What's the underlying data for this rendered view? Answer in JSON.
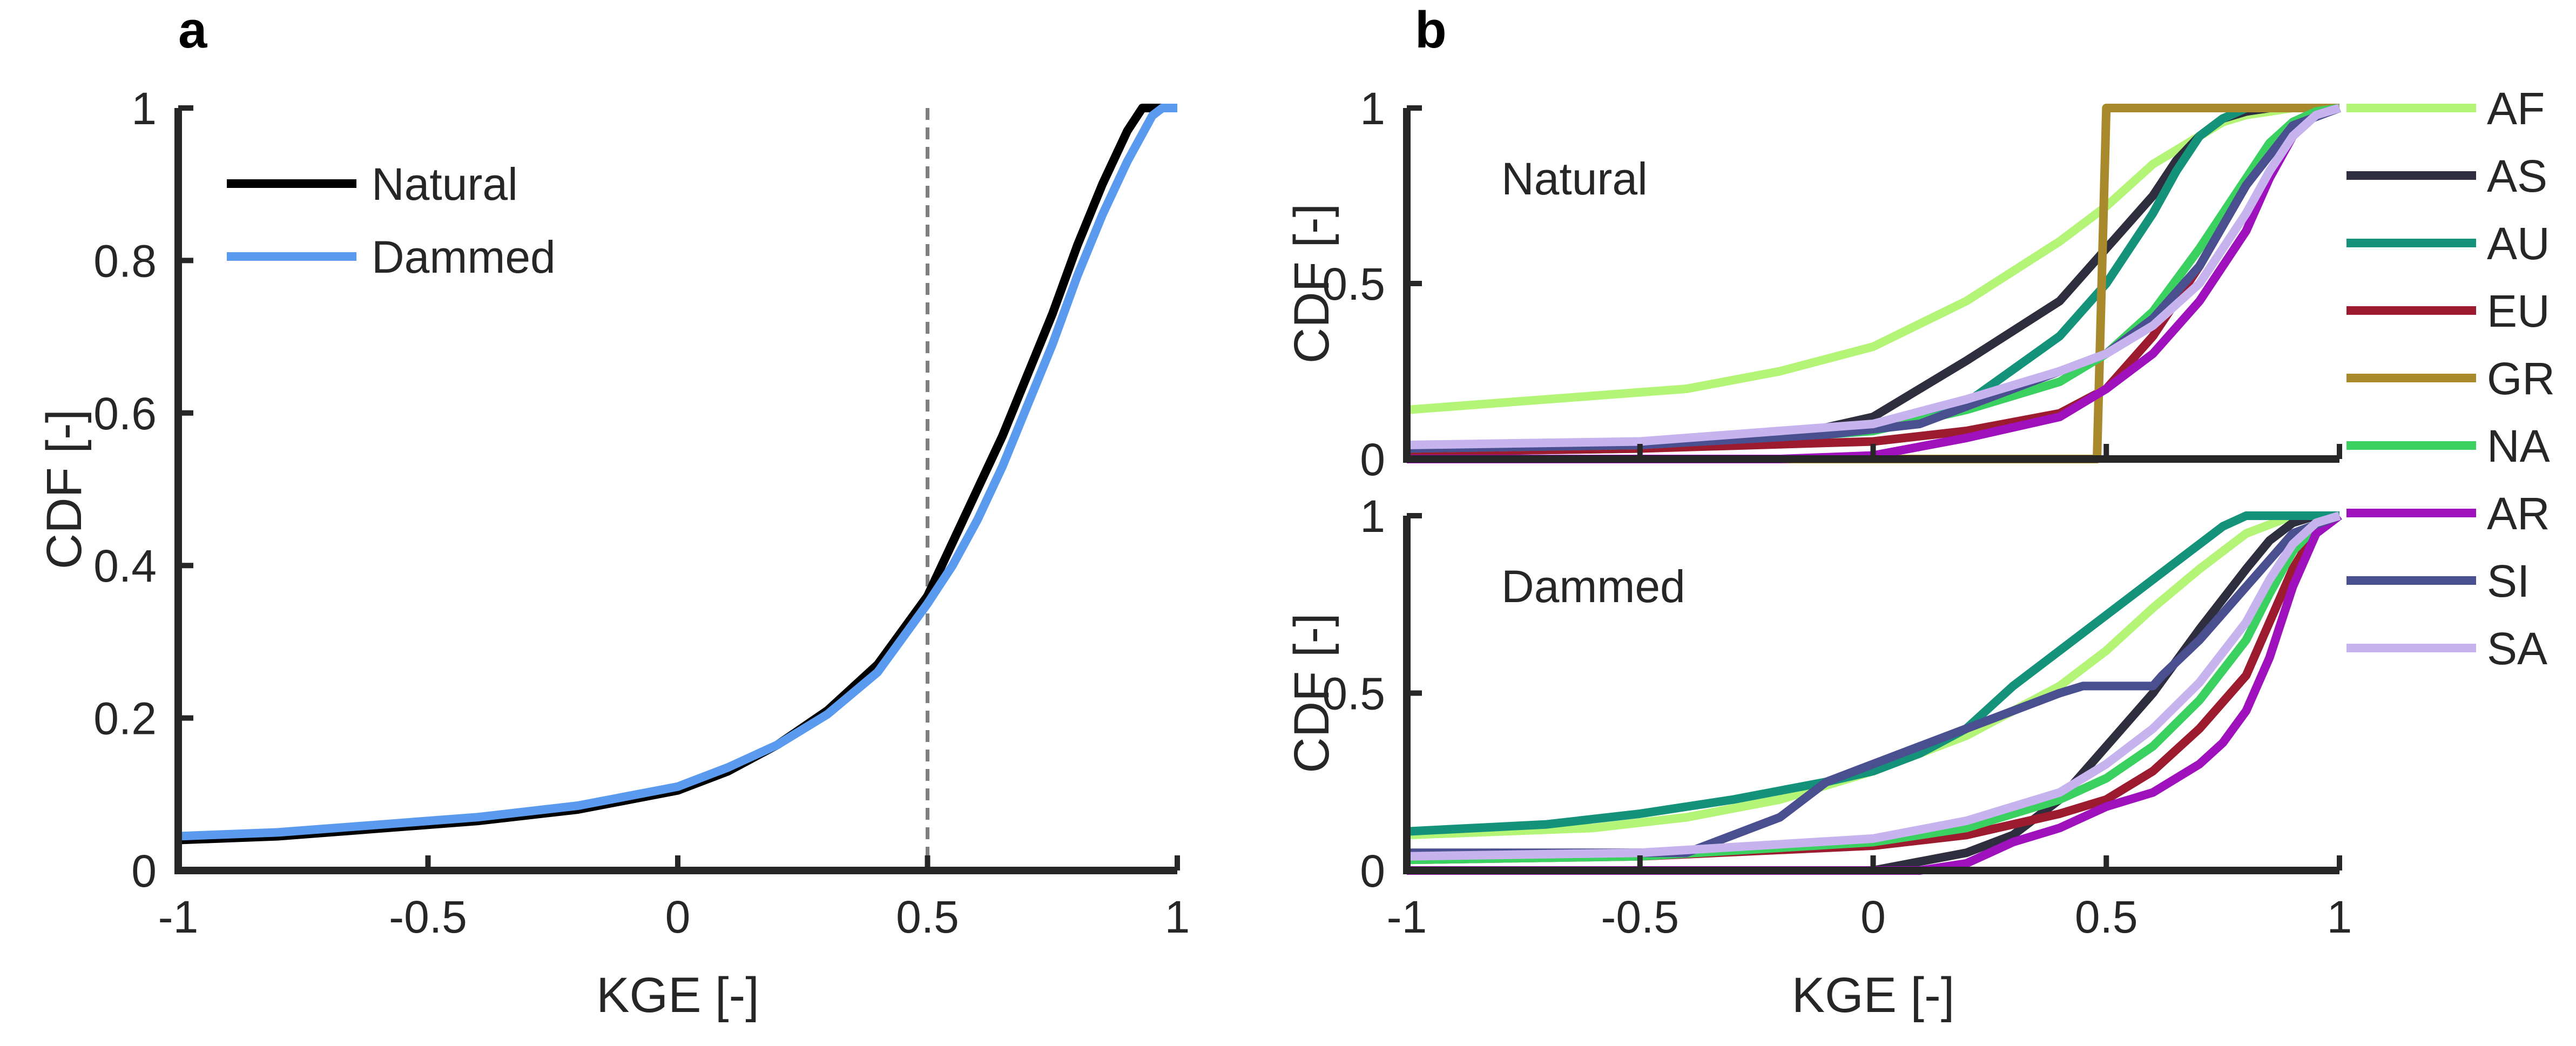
{
  "panels": [
    {
      "letter": "a"
    },
    {
      "letter": "b"
    }
  ],
  "chart_data": [
    {
      "id": "a",
      "type": "line",
      "title": "",
      "xlabel": "KGE [-]",
      "ylabel": "CDF [-]",
      "xlim": [
        -1,
        1
      ],
      "ylim": [
        0,
        1
      ],
      "xticks": [
        "-1",
        "-0.5",
        "0",
        "0.5",
        "1"
      ],
      "yticks": [
        "0",
        "0.2",
        "0.4",
        "0.6",
        "0.8",
        "1"
      ],
      "legend": "top-left",
      "reference_line": {
        "x": 0.5,
        "style": "dashed"
      },
      "series": [
        {
          "name": "Natural",
          "color": "#000000",
          "x": [
            -1,
            -0.8,
            -0.6,
            -0.4,
            -0.2,
            0,
            0.1,
            0.2,
            0.3,
            0.4,
            0.5,
            0.55,
            0.6,
            0.65,
            0.7,
            0.75,
            0.8,
            0.85,
            0.9,
            0.93,
            0.95,
            1.0
          ],
          "y": [
            0.04,
            0.045,
            0.055,
            0.065,
            0.08,
            0.105,
            0.13,
            0.165,
            0.21,
            0.27,
            0.36,
            0.43,
            0.5,
            0.57,
            0.65,
            0.73,
            0.82,
            0.9,
            0.97,
            1.0,
            1.0,
            1.0
          ]
        },
        {
          "name": "Dammed",
          "color": "#5B9BEF",
          "x": [
            -1,
            -0.8,
            -0.6,
            -0.4,
            -0.2,
            0,
            0.1,
            0.2,
            0.3,
            0.4,
            0.5,
            0.55,
            0.6,
            0.65,
            0.7,
            0.75,
            0.8,
            0.85,
            0.9,
            0.95,
            0.97,
            1.0
          ],
          "y": [
            0.045,
            0.05,
            0.06,
            0.07,
            0.085,
            0.11,
            0.135,
            0.165,
            0.205,
            0.26,
            0.35,
            0.4,
            0.46,
            0.53,
            0.61,
            0.69,
            0.78,
            0.86,
            0.93,
            0.99,
            1.0,
            1.0
          ]
        }
      ]
    },
    {
      "id": "b-natural",
      "type": "line",
      "annotation": "Natural",
      "xlabel": "",
      "ylabel": "CDF [-]",
      "xlim": [
        -1,
        1
      ],
      "ylim": [
        0,
        1
      ],
      "xticks": [],
      "yticks": [
        "0",
        "0.5",
        "1"
      ],
      "series": [
        {
          "name": "AF",
          "color": "#B4F577",
          "x": [
            -1,
            -0.8,
            -0.6,
            -0.4,
            -0.2,
            0,
            0.2,
            0.4,
            0.5,
            0.6,
            0.7,
            0.75,
            0.8,
            0.9,
            1.0
          ],
          "y": [
            0.14,
            0.16,
            0.18,
            0.2,
            0.25,
            0.32,
            0.45,
            0.62,
            0.72,
            0.84,
            0.92,
            0.96,
            0.98,
            1.0,
            1.0
          ]
        },
        {
          "name": "AS",
          "color": "#2E2E3E",
          "x": [
            -1,
            -0.6,
            -0.2,
            0,
            0.2,
            0.4,
            0.5,
            0.6,
            0.65,
            0.7,
            0.75,
            0.8,
            0.85,
            0.9,
            0.95,
            1.0
          ],
          "y": [
            0.02,
            0.03,
            0.06,
            0.12,
            0.28,
            0.45,
            0.6,
            0.75,
            0.85,
            0.92,
            0.97,
            0.99,
            1.0,
            1.0,
            1.0,
            1.0
          ]
        },
        {
          "name": "AU",
          "color": "#14937A",
          "x": [
            -1,
            -0.5,
            0,
            0.2,
            0.4,
            0.5,
            0.6,
            0.65,
            0.7,
            0.75,
            0.8,
            0.9,
            1.0
          ],
          "y": [
            0.02,
            0.03,
            0.08,
            0.16,
            0.35,
            0.5,
            0.7,
            0.82,
            0.92,
            0.97,
            1.0,
            1.0,
            1.0
          ]
        },
        {
          "name": "EU",
          "color": "#9C1B2E",
          "x": [
            -1,
            -0.5,
            0,
            0.2,
            0.4,
            0.5,
            0.6,
            0.7,
            0.8,
            0.85,
            0.9,
            0.95,
            1.0
          ],
          "y": [
            0.02,
            0.03,
            0.05,
            0.08,
            0.13,
            0.2,
            0.35,
            0.55,
            0.78,
            0.88,
            0.96,
            0.99,
            1.0
          ]
        },
        {
          "name": "GR",
          "color": "#A88A2D",
          "x": [
            -1,
            0.48,
            0.5,
            0.52,
            1.0
          ],
          "y": [
            0,
            0,
            1,
            1,
            1
          ]
        },
        {
          "name": "NA",
          "color": "#3BD160",
          "x": [
            -1,
            -0.5,
            0,
            0.2,
            0.4,
            0.5,
            0.6,
            0.7,
            0.8,
            0.85,
            0.9,
            0.95,
            1.0
          ],
          "y": [
            0.03,
            0.04,
            0.08,
            0.14,
            0.22,
            0.3,
            0.42,
            0.6,
            0.8,
            0.9,
            0.96,
            0.99,
            1.0
          ]
        },
        {
          "name": "AR",
          "color": "#9E11BD",
          "x": [
            -1,
            -0.2,
            0,
            0.2,
            0.4,
            0.5,
            0.6,
            0.7,
            0.8,
            0.85,
            0.9,
            0.95,
            1.0
          ],
          "y": [
            0,
            0,
            0.01,
            0.06,
            0.12,
            0.2,
            0.3,
            0.45,
            0.65,
            0.8,
            0.92,
            0.98,
            1.0
          ]
        },
        {
          "name": "SI",
          "color": "#4A4F8F",
          "x": [
            -1,
            -0.5,
            -0.1,
            0.1,
            0.3,
            0.5,
            0.6,
            0.7,
            0.8,
            0.9,
            1.0
          ],
          "y": [
            0.03,
            0.04,
            0.07,
            0.1,
            0.2,
            0.3,
            0.4,
            0.55,
            0.78,
            0.95,
            1.0
          ]
        },
        {
          "name": "SA",
          "color": "#C7B3EE",
          "x": [
            -1,
            -0.5,
            0,
            0.2,
            0.4,
            0.5,
            0.6,
            0.7,
            0.8,
            0.85,
            0.9,
            0.95,
            1.0
          ],
          "y": [
            0.04,
            0.05,
            0.1,
            0.17,
            0.25,
            0.3,
            0.38,
            0.5,
            0.7,
            0.82,
            0.92,
            0.98,
            1.0
          ]
        }
      ]
    },
    {
      "id": "b-dammed",
      "type": "line",
      "annotation": "Dammed",
      "xlabel": "KGE [-]",
      "ylabel": "CDF [-]",
      "xlim": [
        -1,
        1
      ],
      "ylim": [
        0,
        1
      ],
      "xticks": [
        "-1",
        "-0.5",
        "0",
        "0.5",
        "1"
      ],
      "yticks": [
        "0",
        "0.5",
        "1"
      ],
      "series": [
        {
          "name": "AF",
          "color": "#B4F577",
          "x": [
            -1,
            -0.6,
            -0.4,
            -0.2,
            0,
            0.2,
            0.4,
            0.5,
            0.6,
            0.7,
            0.75,
            0.8,
            0.9,
            1.0
          ],
          "y": [
            0.1,
            0.12,
            0.15,
            0.2,
            0.28,
            0.38,
            0.52,
            0.62,
            0.74,
            0.85,
            0.9,
            0.95,
            1.0,
            1.0
          ]
        },
        {
          "name": "AS",
          "color": "#2E2E3E",
          "x": [
            -1,
            0,
            0.2,
            0.3,
            0.4,
            0.5,
            0.6,
            0.7,
            0.8,
            0.85,
            0.9,
            0.95,
            1.0
          ],
          "y": [
            0,
            0,
            0.05,
            0.1,
            0.2,
            0.35,
            0.5,
            0.68,
            0.85,
            0.93,
            0.98,
            1.0,
            1.0
          ]
        },
        {
          "name": "AU",
          "color": "#14937A",
          "x": [
            -1,
            -0.7,
            -0.5,
            -0.3,
            -0.1,
            0,
            0.1,
            0.2,
            0.3,
            0.4,
            0.5,
            0.6,
            0.7,
            0.75,
            0.8,
            1.0
          ],
          "y": [
            0.11,
            0.13,
            0.16,
            0.2,
            0.25,
            0.28,
            0.33,
            0.4,
            0.52,
            0.62,
            0.72,
            0.82,
            0.92,
            0.97,
            1.0,
            1.0
          ]
        },
        {
          "name": "EU",
          "color": "#9C1B2E",
          "x": [
            -1,
            -0.5,
            0,
            0.2,
            0.4,
            0.5,
            0.6,
            0.7,
            0.8,
            0.85,
            0.9,
            0.95,
            1.0
          ],
          "y": [
            0.03,
            0.04,
            0.07,
            0.1,
            0.16,
            0.2,
            0.28,
            0.4,
            0.55,
            0.7,
            0.85,
            0.96,
            1.0
          ]
        },
        {
          "name": "NA",
          "color": "#3BD160",
          "x": [
            -1,
            -0.5,
            0,
            0.2,
            0.4,
            0.5,
            0.6,
            0.7,
            0.8,
            0.85,
            0.9,
            0.95,
            1.0
          ],
          "y": [
            0.03,
            0.04,
            0.08,
            0.12,
            0.2,
            0.26,
            0.35,
            0.48,
            0.65,
            0.78,
            0.9,
            0.97,
            1.0
          ]
        },
        {
          "name": "AR",
          "color": "#9E11BD",
          "x": [
            -1,
            0.1,
            0.2,
            0.3,
            0.4,
            0.5,
            0.6,
            0.7,
            0.75,
            0.8,
            0.85,
            0.9,
            0.95,
            1.0
          ],
          "y": [
            0,
            0,
            0.02,
            0.08,
            0.12,
            0.18,
            0.22,
            0.3,
            0.36,
            0.45,
            0.6,
            0.8,
            0.95,
            1.0
          ]
        },
        {
          "name": "SI",
          "color": "#4A4F8F",
          "x": [
            -1,
            -0.4,
            -0.3,
            -0.2,
            -0.1,
            0,
            0.1,
            0.2,
            0.3,
            0.4,
            0.45,
            0.6,
            0.62,
            0.7,
            0.8,
            0.9,
            1.0
          ],
          "y": [
            0.05,
            0.05,
            0.1,
            0.15,
            0.25,
            0.3,
            0.35,
            0.4,
            0.45,
            0.5,
            0.52,
            0.52,
            0.55,
            0.65,
            0.8,
            0.95,
            1.0
          ]
        },
        {
          "name": "SA",
          "color": "#C7B3EE",
          "x": [
            -1,
            -0.5,
            0,
            0.2,
            0.4,
            0.5,
            0.6,
            0.7,
            0.8,
            0.85,
            0.9,
            0.95,
            1.0
          ],
          "y": [
            0.04,
            0.05,
            0.09,
            0.14,
            0.22,
            0.3,
            0.4,
            0.53,
            0.7,
            0.82,
            0.92,
            0.98,
            1.0
          ]
        }
      ]
    }
  ],
  "legend_b": {
    "placement": "right",
    "entries": [
      {
        "name": "AF",
        "color": "#B4F577"
      },
      {
        "name": "AS",
        "color": "#2E2E3E"
      },
      {
        "name": "AU",
        "color": "#14937A"
      },
      {
        "name": "EU",
        "color": "#9C1B2E"
      },
      {
        "name": "GR",
        "color": "#A88A2D"
      },
      {
        "name": "NA",
        "color": "#3BD160"
      },
      {
        "name": "AR",
        "color": "#9E11BD"
      },
      {
        "name": "SI",
        "color": "#4A4F8F"
      },
      {
        "name": "SA",
        "color": "#C7B3EE"
      }
    ]
  }
}
